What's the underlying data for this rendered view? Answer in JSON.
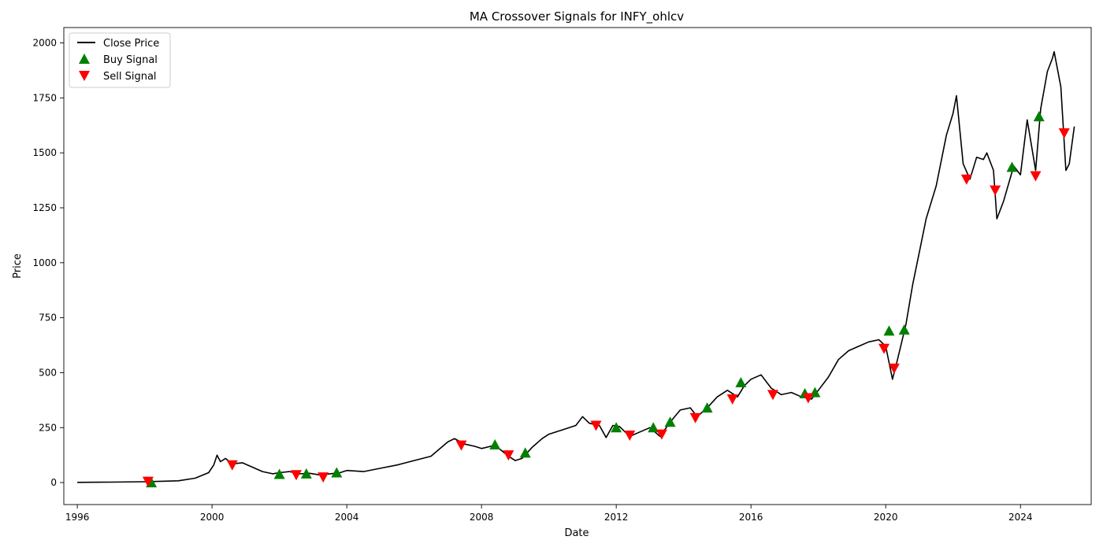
{
  "chart_data": {
    "type": "line",
    "title": "MA Crossover Signals for INFY_ohlcv",
    "xlabel": "Date",
    "ylabel": "Price",
    "xlim": [
      1995.6,
      2026.1
    ],
    "ylim": [
      -100,
      2070
    ],
    "x_ticks": [
      1996,
      2000,
      2004,
      2008,
      2012,
      2016,
      2020,
      2024
    ],
    "y_ticks": [
      0,
      250,
      500,
      750,
      1000,
      1250,
      1500,
      1750,
      2000
    ],
    "grid": false,
    "legend_position": "top-left",
    "legend": [
      {
        "label": "Close Price",
        "kind": "line",
        "color": "#000000"
      },
      {
        "label": "Buy Signal",
        "kind": "triangle-up",
        "color": "#008000"
      },
      {
        "label": "Sell Signal",
        "kind": "triangle-down",
        "color": "#ff0000"
      }
    ],
    "series": [
      {
        "name": "Close Price",
        "color": "#000000",
        "points": [
          [
            1996.0,
            1
          ],
          [
            1997.0,
            2
          ],
          [
            1998.0,
            4
          ],
          [
            1998.5,
            6
          ],
          [
            1999.0,
            8
          ],
          [
            1999.5,
            20
          ],
          [
            1999.9,
            45
          ],
          [
            2000.05,
            80
          ],
          [
            2000.15,
            125
          ],
          [
            2000.25,
            95
          ],
          [
            2000.4,
            110
          ],
          [
            2000.6,
            85
          ],
          [
            2000.9,
            90
          ],
          [
            2001.2,
            70
          ],
          [
            2001.5,
            50
          ],
          [
            2001.8,
            40
          ],
          [
            2002.0,
            45
          ],
          [
            2002.3,
            50
          ],
          [
            2002.6,
            40
          ],
          [
            2002.9,
            42
          ],
          [
            2003.2,
            35
          ],
          [
            2003.5,
            40
          ],
          [
            2003.8,
            45
          ],
          [
            2004.0,
            55
          ],
          [
            2004.5,
            50
          ],
          [
            2005.0,
            65
          ],
          [
            2005.5,
            80
          ],
          [
            2006.0,
            100
          ],
          [
            2006.5,
            120
          ],
          [
            2007.0,
            185
          ],
          [
            2007.2,
            200
          ],
          [
            2007.5,
            175
          ],
          [
            2007.8,
            165
          ],
          [
            2008.0,
            155
          ],
          [
            2008.4,
            170
          ],
          [
            2008.8,
            120
          ],
          [
            2009.0,
            100
          ],
          [
            2009.2,
            110
          ],
          [
            2009.5,
            160
          ],
          [
            2009.8,
            200
          ],
          [
            2010.0,
            220
          ],
          [
            2010.5,
            245
          ],
          [
            2010.8,
            260
          ],
          [
            2011.0,
            300
          ],
          [
            2011.2,
            270
          ],
          [
            2011.5,
            260
          ],
          [
            2011.7,
            205
          ],
          [
            2011.9,
            260
          ],
          [
            2012.1,
            255
          ],
          [
            2012.4,
            210
          ],
          [
            2012.7,
            230
          ],
          [
            2013.0,
            250
          ],
          [
            2013.3,
            210
          ],
          [
            2013.6,
            275
          ],
          [
            2013.9,
            330
          ],
          [
            2014.2,
            340
          ],
          [
            2014.4,
            300
          ],
          [
            2014.7,
            340
          ],
          [
            2015.0,
            390
          ],
          [
            2015.3,
            420
          ],
          [
            2015.6,
            390
          ],
          [
            2015.8,
            440
          ],
          [
            2016.0,
            470
          ],
          [
            2016.3,
            490
          ],
          [
            2016.6,
            430
          ],
          [
            2016.9,
            400
          ],
          [
            2017.2,
            410
          ],
          [
            2017.5,
            390
          ],
          [
            2017.8,
            380
          ],
          [
            2018.0,
            420
          ],
          [
            2018.3,
            480
          ],
          [
            2018.6,
            560
          ],
          [
            2018.9,
            600
          ],
          [
            2019.2,
            620
          ],
          [
            2019.5,
            640
          ],
          [
            2019.8,
            650
          ],
          [
            2020.0,
            620
          ],
          [
            2020.2,
            470
          ],
          [
            2020.35,
            560
          ],
          [
            2020.6,
            720
          ],
          [
            2020.8,
            900
          ],
          [
            2021.0,
            1050
          ],
          [
            2021.2,
            1200
          ],
          [
            2021.5,
            1350
          ],
          [
            2021.8,
            1580
          ],
          [
            2022.0,
            1680
          ],
          [
            2022.1,
            1760
          ],
          [
            2022.3,
            1450
          ],
          [
            2022.5,
            1380
          ],
          [
            2022.7,
            1480
          ],
          [
            2022.9,
            1470
          ],
          [
            2023.0,
            1500
          ],
          [
            2023.2,
            1420
          ],
          [
            2023.3,
            1200
          ],
          [
            2023.5,
            1280
          ],
          [
            2023.8,
            1440
          ],
          [
            2024.0,
            1400
          ],
          [
            2024.2,
            1650
          ],
          [
            2024.45,
            1420
          ],
          [
            2024.6,
            1700
          ],
          [
            2024.8,
            1870
          ],
          [
            2024.95,
            1930
          ],
          [
            2025.0,
            1960
          ],
          [
            2025.2,
            1800
          ],
          [
            2025.35,
            1420
          ],
          [
            2025.45,
            1450
          ],
          [
            2025.6,
            1620
          ]
        ]
      }
    ],
    "buy_signals": [
      [
        1998.2,
        0
      ],
      [
        2002.0,
        38
      ],
      [
        2002.8,
        40
      ],
      [
        2003.7,
        45
      ],
      [
        2008.4,
        172
      ],
      [
        2009.3,
        135
      ],
      [
        2012.0,
        250
      ],
      [
        2013.1,
        250
      ],
      [
        2013.6,
        275
      ],
      [
        2014.7,
        340
      ],
      [
        2015.7,
        455
      ],
      [
        2017.6,
        405
      ],
      [
        2017.9,
        410
      ],
      [
        2020.1,
        690
      ],
      [
        2020.55,
        695
      ],
      [
        2023.75,
        1435
      ],
      [
        2024.55,
        1665
      ]
    ],
    "sell_signals": [
      [
        1998.1,
        5
      ],
      [
        2000.6,
        80
      ],
      [
        2002.5,
        35
      ],
      [
        2003.3,
        25
      ],
      [
        2007.4,
        170
      ],
      [
        2008.8,
        125
      ],
      [
        2011.4,
        260
      ],
      [
        2012.4,
        215
      ],
      [
        2013.35,
        220
      ],
      [
        2014.35,
        295
      ],
      [
        2015.45,
        380
      ],
      [
        2016.65,
        400
      ],
      [
        2017.7,
        385
      ],
      [
        2019.95,
        610
      ],
      [
        2020.25,
        520
      ],
      [
        2022.4,
        1380
      ],
      [
        2023.25,
        1330
      ],
      [
        2024.45,
        1395
      ],
      [
        2025.3,
        1590
      ]
    ]
  }
}
